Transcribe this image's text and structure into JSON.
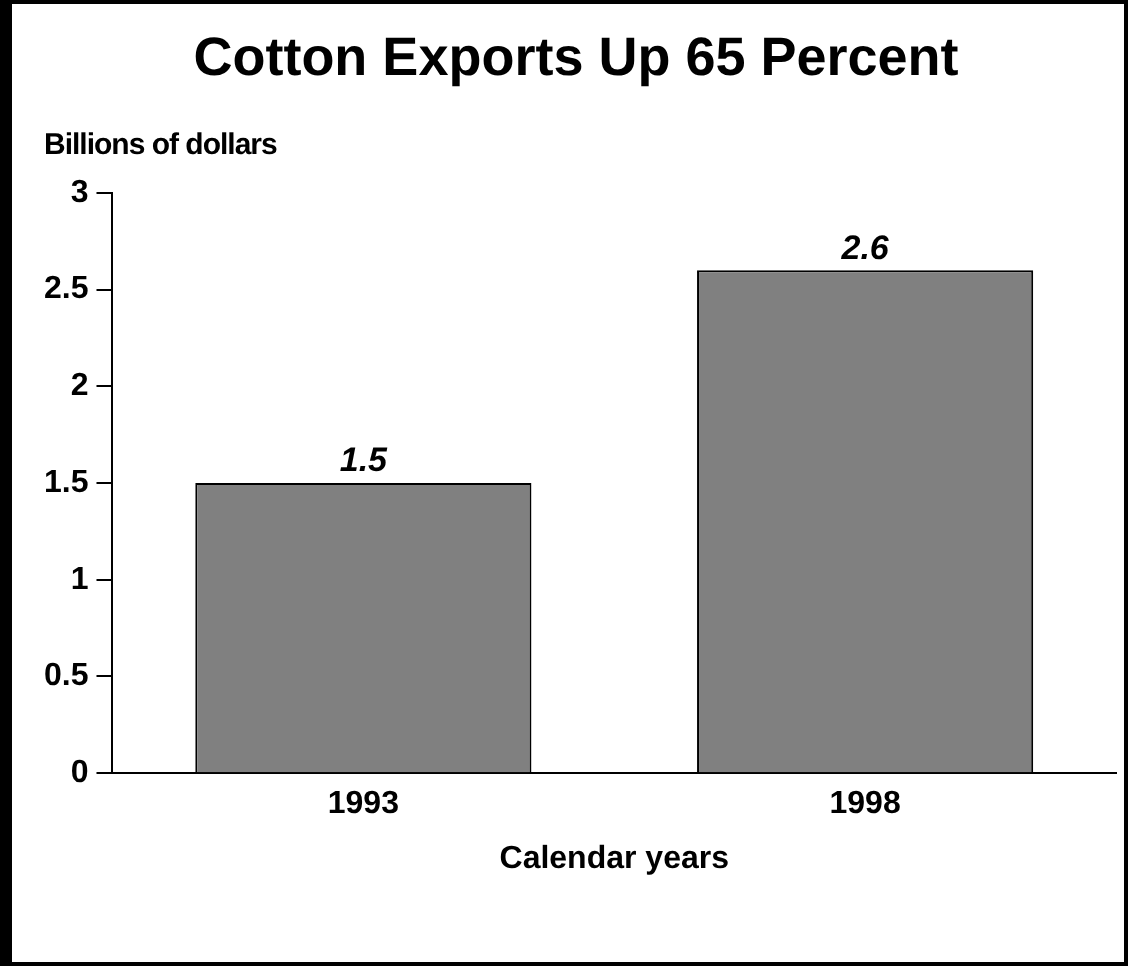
{
  "chart_data": {
    "type": "bar",
    "title": "Cotton Exports Up 65 Percent",
    "ylabel": "Billions of dollars",
    "xlabel": "Calendar years",
    "categories": [
      "1993",
      "1998"
    ],
    "values": [
      1.5,
      2.6
    ],
    "color": "#808080",
    "ylim": [
      0,
      3
    ],
    "yticks": [
      0,
      0.5,
      1,
      1.5,
      2,
      2.5,
      3
    ],
    "grid": false,
    "legend": false,
    "data_labels": true
  }
}
